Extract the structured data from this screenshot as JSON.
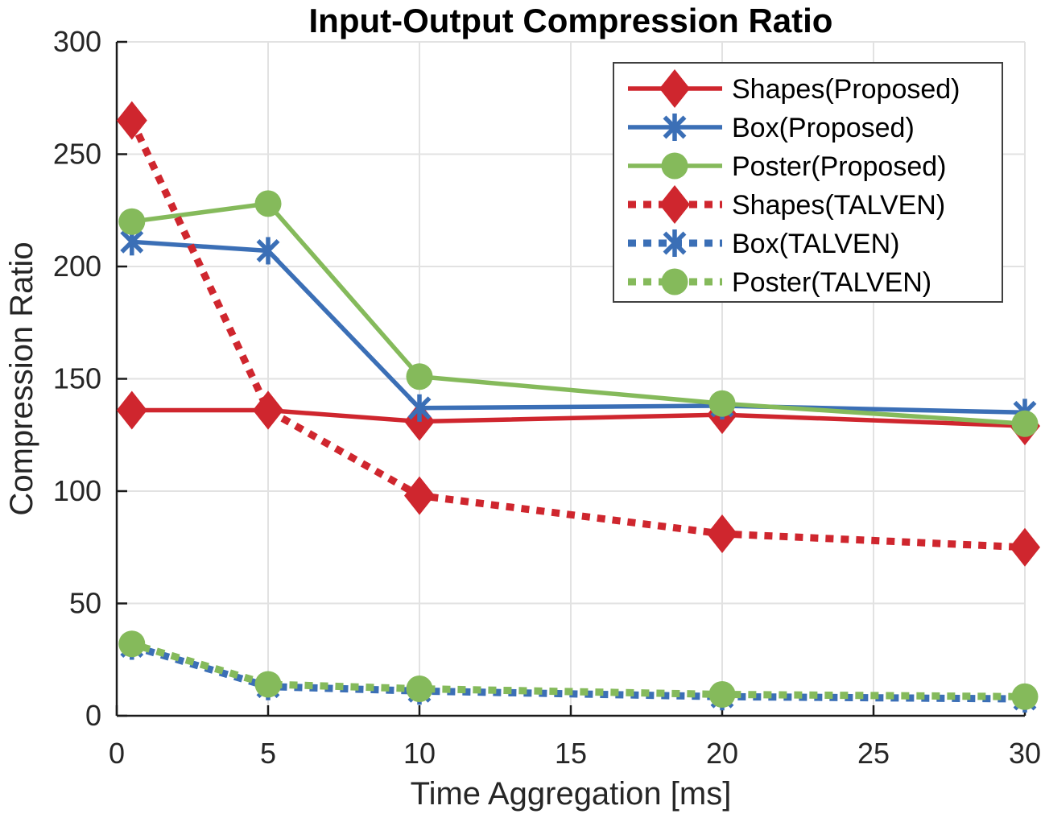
{
  "figure": {
    "background": "#ffffff",
    "grid_color": "#e2e2e2",
    "spine_color": "#1a1a1a",
    "tick_label_color": "#262626",
    "legend_border_color": "#404040"
  },
  "chart_data": {
    "type": "line",
    "title": "Input-Output Compression Ratio",
    "xlabel": "Time Aggregation [ms]",
    "ylabel": "Compression Ratio",
    "xlim": [
      0,
      30
    ],
    "ylim": [
      0,
      300
    ],
    "xticks": [
      0,
      5,
      10,
      15,
      20,
      25,
      30
    ],
    "yticks": [
      0,
      50,
      100,
      150,
      200,
      250,
      300
    ],
    "grid": true,
    "legend_position": "top-right",
    "x": [
      0.5,
      5,
      10,
      20,
      30
    ],
    "series": [
      {
        "name": "Shapes(Proposed)",
        "color": "#cf262e",
        "line": "solid",
        "marker": "diamond",
        "values": [
          136,
          136,
          131,
          134,
          129
        ]
      },
      {
        "name": "Box(Proposed)",
        "color": "#3b6fb6",
        "line": "solid",
        "marker": "asterisk",
        "values": [
          211,
          207,
          137,
          138,
          135
        ]
      },
      {
        "name": "Poster(Proposed)",
        "color": "#85ba5b",
        "line": "solid",
        "marker": "circle",
        "values": [
          220,
          228,
          151,
          139,
          130
        ]
      },
      {
        "name": "Shapes(TALVEN)",
        "color": "#cf262e",
        "line": "dotted",
        "marker": "diamond",
        "values": [
          265,
          136,
          98,
          81,
          75
        ]
      },
      {
        "name": "Box(TALVEN)",
        "color": "#3b6fb6",
        "line": "dotted",
        "marker": "asterisk",
        "values": [
          31,
          13,
          11,
          8.5,
          7.5
        ]
      },
      {
        "name": "Poster(TALVEN)",
        "color": "#85ba5b",
        "line": "dotted",
        "marker": "circle",
        "values": [
          32,
          14,
          12,
          9.5,
          8.5
        ]
      }
    ]
  }
}
